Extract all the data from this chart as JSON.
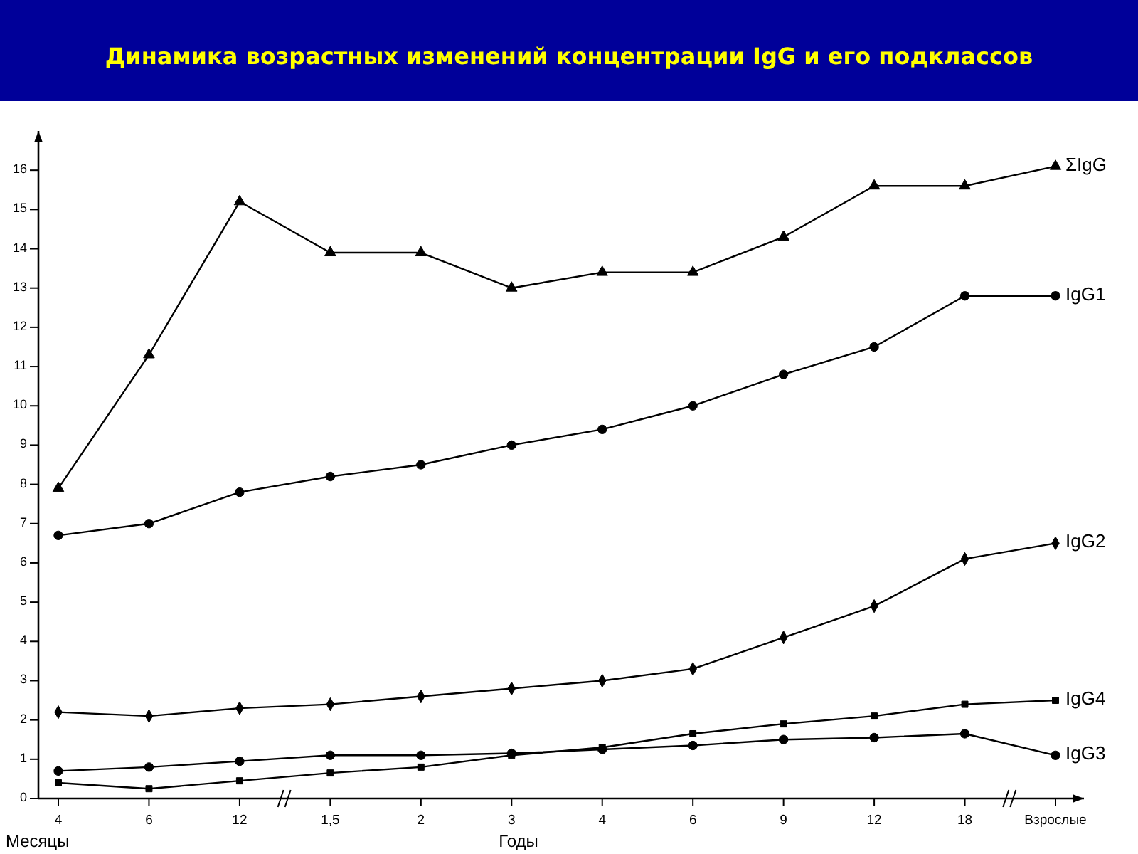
{
  "chart_data": {
    "type": "line",
    "title": "Динамика возрастных изменений концентрации IgG и его подклассов",
    "xlabel": "Годы",
    "annotations": [
      "Месяцы"
    ],
    "categories": [
      "4",
      "6",
      "12",
      "1,5",
      "2",
      "3",
      "4",
      "6",
      "9",
      "12",
      "18",
      "Взрослые"
    ],
    "ylim": [
      0,
      17
    ],
    "yticks": [
      0,
      1,
      2,
      3,
      4,
      5,
      6,
      7,
      8,
      9,
      10,
      11,
      12,
      13,
      14,
      15,
      16
    ],
    "series": [
      {
        "name": "ΣIgG",
        "color": "#000000",
        "marker": "triangle",
        "values": [
          7.9,
          11.3,
          15.2,
          13.9,
          13.9,
          13.0,
          13.4,
          13.4,
          14.3,
          15.6,
          15.6,
          16.1
        ]
      },
      {
        "name": "IgG1",
        "color": "#000000",
        "marker": "circle",
        "values": [
          6.7,
          7.0,
          7.8,
          8.2,
          8.5,
          9.0,
          9.4,
          10.0,
          10.8,
          11.5,
          12.8,
          12.8
        ]
      },
      {
        "name": "IgG2",
        "color": "#000000",
        "marker": "diamond",
        "values": [
          2.2,
          2.1,
          2.3,
          2.4,
          2.6,
          2.8,
          3.0,
          3.3,
          4.1,
          4.9,
          6.1,
          6.5
        ]
      },
      {
        "name": "IgG4",
        "color": "#000000",
        "marker": "square",
        "values": [
          0.4,
          0.25,
          0.45,
          0.65,
          0.8,
          1.1,
          1.3,
          1.65,
          1.9,
          2.1,
          2.4,
          2.5
        ]
      },
      {
        "name": "IgG3",
        "color": "#000000",
        "marker": "circle",
        "values": [
          0.7,
          0.8,
          0.95,
          1.1,
          1.1,
          1.15,
          1.25,
          1.35,
          1.5,
          1.55,
          1.65,
          1.1
        ]
      }
    ]
  }
}
